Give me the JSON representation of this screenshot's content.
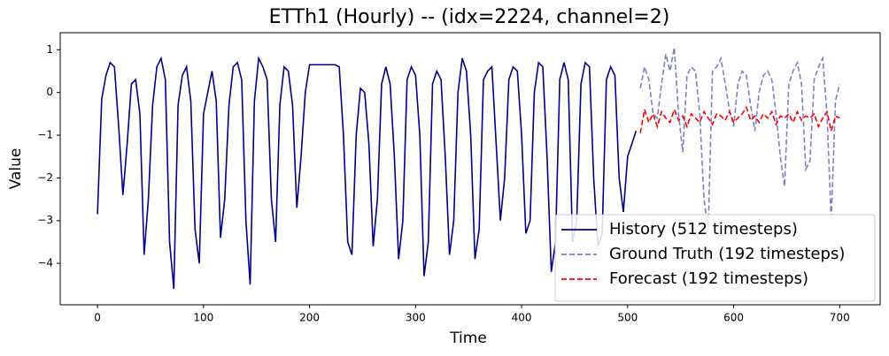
{
  "chart_data": {
    "type": "line",
    "title": "ETTh1 (Hourly) -- (idx=2224, channel=2)",
    "x_label": "Time",
    "y_label": "Value",
    "xlim": [
      -35.15,
      738.15
    ],
    "ylim": [
      -4.97,
      1.4
    ],
    "xticks": [
      0,
      100,
      200,
      300,
      400,
      500,
      600,
      700
    ],
    "yticks": [
      {
        "value": -4,
        "label": "−4"
      },
      {
        "value": -3,
        "label": "−3"
      },
      {
        "value": -2,
        "label": "−2"
      },
      {
        "value": -1,
        "label": "−1"
      },
      0,
      1
    ],
    "legend": "lower right",
    "series": [
      {
        "name": "History (512 timesteps)",
        "color": "#00008b",
        "linestyle": "solid",
        "x": [
          0,
          4,
          8,
          12,
          16,
          20,
          24,
          28,
          32,
          36,
          40,
          44,
          48,
          52,
          56,
          60,
          64,
          68,
          72,
          76,
          80,
          84,
          88,
          92,
          96,
          100,
          104,
          108,
          112,
          116,
          120,
          124,
          128,
          132,
          136,
          140,
          144,
          148,
          152,
          156,
          160,
          164,
          168,
          172,
          176,
          180,
          184,
          188,
          192,
          196,
          200,
          204,
          208,
          212,
          216,
          220,
          224,
          228,
          232,
          236,
          240,
          244,
          248,
          252,
          256,
          260,
          264,
          268,
          272,
          276,
          280,
          284,
          288,
          292,
          296,
          300,
          304,
          308,
          312,
          316,
          320,
          324,
          328,
          332,
          336,
          340,
          344,
          348,
          352,
          356,
          360,
          364,
          368,
          372,
          376,
          380,
          384,
          388,
          392,
          396,
          400,
          404,
          408,
          412,
          416,
          420,
          424,
          428,
          432,
          436,
          440,
          444,
          448,
          452,
          456,
          460,
          464,
          468,
          472,
          476,
          480,
          484,
          488,
          492,
          496,
          500,
          504,
          508
        ],
        "values": [
          -2.85,
          -0.15,
          0.4,
          0.7,
          0.6,
          -0.8,
          -2.4,
          -1.2,
          0.2,
          0.3,
          -0.5,
          -3.8,
          -2.5,
          -0.3,
          0.6,
          0.8,
          0.3,
          -3.5,
          -4.6,
          -0.3,
          0.4,
          0.6,
          -0.2,
          -3.2,
          -4.0,
          -0.5,
          0.0,
          0.5,
          -0.2,
          -3.4,
          -2.5,
          -0.3,
          0.6,
          0.7,
          0.3,
          -3.0,
          -4.5,
          -0.2,
          0.8,
          0.6,
          0.3,
          -2.5,
          -3.5,
          -0.3,
          0.6,
          0.5,
          -0.3,
          -2.7,
          -1.5,
          0.0,
          0.65,
          0.65,
          0.65,
          0.65,
          0.65,
          0.65,
          0.65,
          0.6,
          -1.0,
          -3.5,
          -3.8,
          -1.0,
          0.1,
          0.0,
          -1.2,
          -3.6,
          -2.5,
          0.2,
          0.6,
          0.2,
          -1.5,
          -3.9,
          -3.0,
          0.3,
          0.6,
          0.4,
          -1.0,
          -4.3,
          -3.5,
          0.2,
          0.5,
          0.3,
          -1.5,
          -3.8,
          -3.0,
          0.0,
          0.8,
          0.5,
          -1.0,
          -3.9,
          -3.2,
          0.3,
          0.5,
          0.6,
          -1.2,
          -3.0,
          -2.0,
          0.3,
          0.6,
          0.5,
          -1.0,
          -3.3,
          -3.0,
          0.0,
          0.7,
          0.6,
          -1.5,
          -4.2,
          -3.5,
          0.3,
          0.7,
          0.3,
          -3.5,
          -3.0,
          0.2,
          0.7,
          0.6,
          -2.0,
          -3.6,
          -3.3,
          0.3,
          0.6,
          0.4,
          -2.0,
          -2.8,
          -1.5,
          -1.2,
          -0.9
        ]
      },
      {
        "name": "Ground Truth (192 timesteps)",
        "color": "#7f7fc5",
        "linestyle": "dashed",
        "x": [
          512,
          516,
          520,
          524,
          528,
          532,
          536,
          540,
          544,
          548,
          552,
          556,
          560,
          564,
          568,
          572,
          576,
          580,
          584,
          588,
          592,
          596,
          600,
          604,
          608,
          612,
          616,
          620,
          624,
          628,
          632,
          636,
          640,
          644,
          648,
          652,
          656,
          660,
          664,
          668,
          672,
          676,
          680,
          684,
          688,
          692,
          696,
          700
        ],
        "values": [
          0.1,
          0.6,
          0.3,
          -0.5,
          -0.6,
          0.2,
          0.9,
          0.5,
          1.05,
          -0.5,
          -1.4,
          0.4,
          0.6,
          0.5,
          -0.5,
          -2.5,
          -3.2,
          0.5,
          0.6,
          0.8,
          0.2,
          -0.4,
          -0.8,
          0.2,
          0.5,
          0.4,
          -0.3,
          -0.9,
          0.0,
          0.4,
          0.5,
          0.3,
          -0.5,
          -1.5,
          -2.2,
          0.2,
          0.5,
          0.7,
          0.2,
          -1.8,
          -1.6,
          0.3,
          0.6,
          0.8,
          -0.5,
          -3.0,
          -0.2,
          0.2
        ]
      },
      {
        "name": "Forecast (192 timesteps)",
        "color": "#ff0000",
        "linestyle": "dashed",
        "x": [
          512,
          516,
          520,
          524,
          528,
          532,
          536,
          540,
          544,
          548,
          552,
          556,
          560,
          564,
          568,
          572,
          576,
          580,
          584,
          588,
          592,
          596,
          600,
          604,
          608,
          612,
          616,
          620,
          624,
          628,
          632,
          636,
          640,
          644,
          648,
          652,
          656,
          660,
          664,
          668,
          672,
          676,
          680,
          684,
          688,
          692,
          696,
          700
        ],
        "values": [
          -0.95,
          -0.4,
          -0.7,
          -0.5,
          -0.8,
          -0.45,
          -0.6,
          -0.7,
          -0.4,
          -0.65,
          -0.55,
          -0.8,
          -0.5,
          -0.6,
          -0.7,
          -0.45,
          -0.6,
          -0.75,
          -0.5,
          -0.55,
          -0.65,
          -0.45,
          -0.7,
          -0.6,
          -0.5,
          -0.35,
          -0.65,
          -0.55,
          -0.7,
          -0.5,
          -0.6,
          -0.45,
          -0.75,
          -0.55,
          -0.6,
          -0.5,
          -0.7,
          -0.45,
          -0.65,
          -0.55,
          -0.6,
          -0.5,
          -0.8,
          -0.6,
          -0.45,
          -0.9,
          -0.55,
          -0.6
        ]
      }
    ]
  }
}
